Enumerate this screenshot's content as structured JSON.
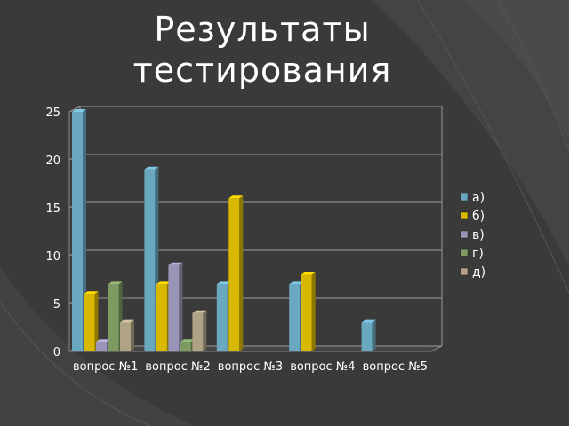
{
  "slide": {
    "title_line1": "Результаты",
    "title_line2": "тестирования"
  },
  "chart_data": {
    "type": "bar",
    "categories": [
      "вопрос №1",
      "вопрос №2",
      "вопрос №3",
      "вопрос №4",
      "вопрос №5"
    ],
    "series": [
      {
        "name": "а)",
        "color": "#6aa8c0",
        "values": [
          25,
          19,
          7,
          7,
          3
        ]
      },
      {
        "name": "б)",
        "color": "#d8b800",
        "values": [
          6,
          7,
          16,
          8,
          null
        ]
      },
      {
        "name": "в)",
        "color": "#9a94b8",
        "values": [
          1,
          9,
          null,
          null,
          null
        ]
      },
      {
        "name": "г)",
        "color": "#7d9a62",
        "values": [
          7,
          1,
          null,
          null,
          null
        ]
      },
      {
        "name": "д)",
        "color": "#b0a284",
        "values": [
          3,
          4,
          null,
          null,
          null
        ]
      }
    ],
    "ylim": [
      0,
      25
    ],
    "yticks": [
      "0",
      "5",
      "10",
      "15",
      "20",
      "25"
    ],
    "grid": true,
    "legend_position": "right",
    "title": "",
    "xlabel": "",
    "ylabel": ""
  }
}
